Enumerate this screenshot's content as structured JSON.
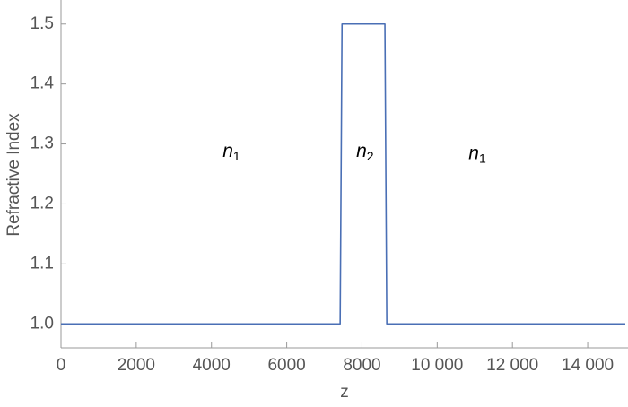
{
  "chart_data": {
    "type": "line",
    "x_label": "z",
    "y_label": "Refractive Index",
    "x": [
      0,
      7420,
      7470,
      8610,
      8660,
      15000
    ],
    "series": [
      {
        "color": "#4a6fb5",
        "values": [
          1,
          1,
          1.5,
          1.5,
          1,
          1
        ]
      }
    ],
    "xlim": [
      0,
      15000
    ],
    "ylim": [
      0.96,
      1.54
    ],
    "xticks": [
      0,
      2000,
      4000,
      6000,
      8000,
      {
        "value": 10000,
        "label": "10 000"
      },
      {
        "value": 12000,
        "label": "12 000"
      },
      {
        "value": 14000,
        "label": "14 000"
      }
    ],
    "yticks": [
      {
        "value": 1,
        "label": "1.0"
      },
      1.1,
      1.2,
      1.3,
      1.4,
      1.5
    ],
    "annotations": [
      {
        "text": "n",
        "subscript": "1",
        "x": 4530,
        "y": 1.287
      },
      {
        "text": "n",
        "subscript": "2",
        "x": 8080,
        "y": 1.287
      },
      {
        "text": "n",
        "subscript": "1",
        "x": 11065,
        "y": 1.284
      }
    ]
  }
}
